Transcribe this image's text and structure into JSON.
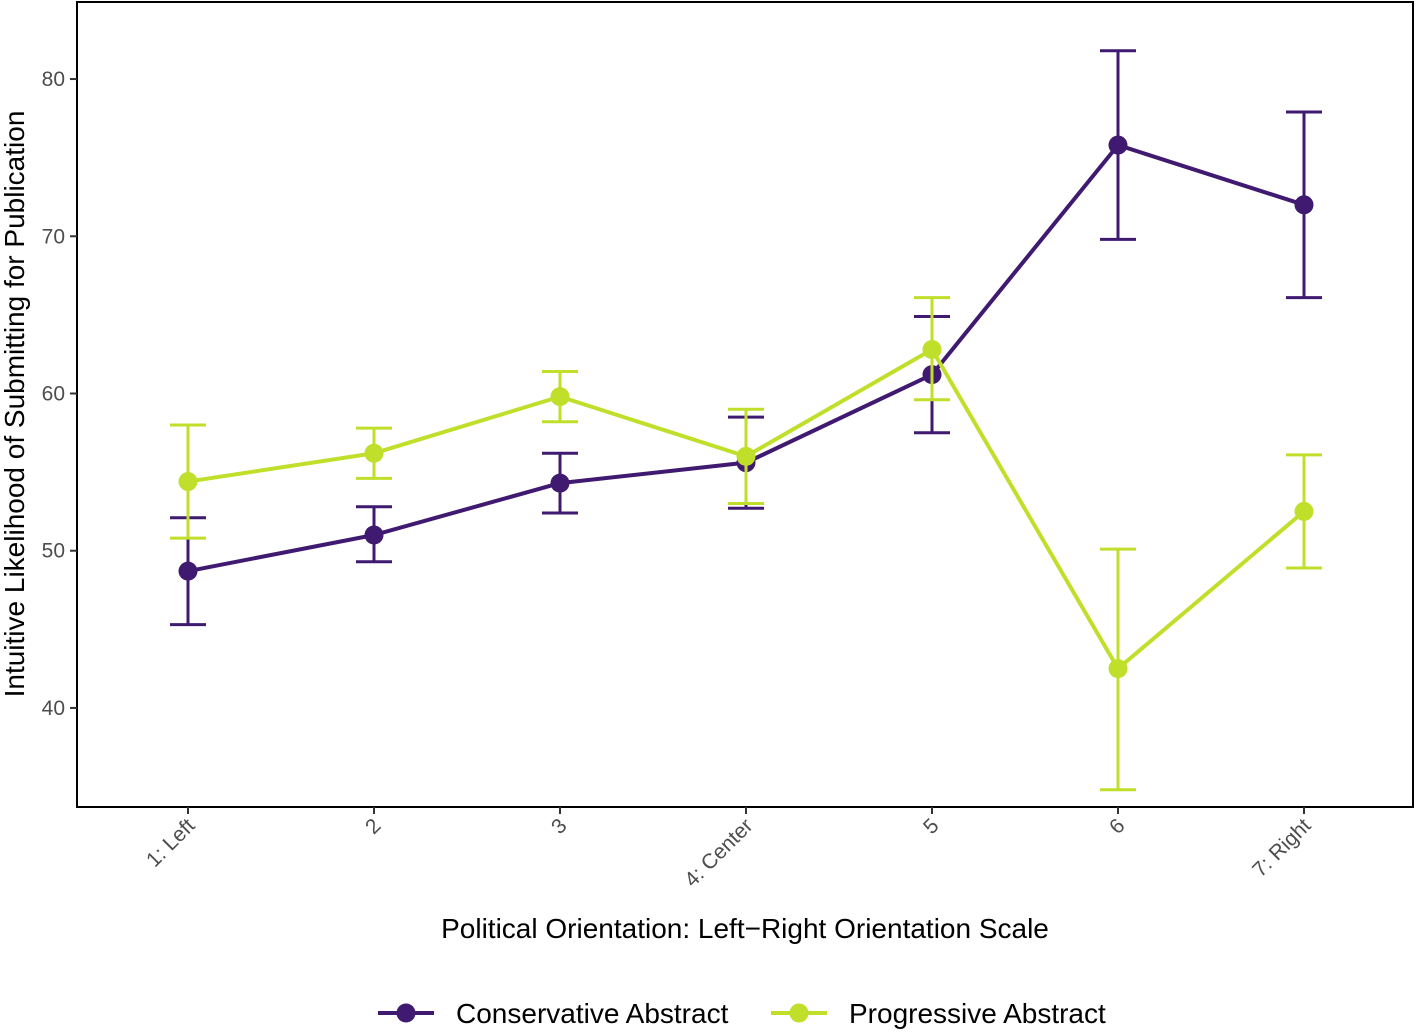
{
  "chart_data": {
    "type": "line",
    "title": "",
    "xlabel": "Political Orientation: Left−Right Orientation Scale",
    "ylabel": "Intuitive Likelihood of Submitting for Publication",
    "categories": [
      "1: Left",
      "2",
      "3",
      "4: Center",
      "5",
      "6",
      "7: Right"
    ],
    "ylim": [
      33.7,
      84.9
    ],
    "yticks": [
      40,
      50,
      60,
      70,
      80
    ],
    "grid": false,
    "legend_position": "bottom",
    "series": [
      {
        "name": "Conservative Abstract",
        "color": "#3f1a70",
        "values": [
          48.7,
          51.0,
          54.3,
          55.6,
          61.2,
          75.8,
          72.0
        ],
        "lower": [
          45.3,
          49.3,
          52.4,
          52.7,
          57.5,
          69.8,
          66.1
        ],
        "upper": [
          52.1,
          52.8,
          56.2,
          58.5,
          64.9,
          81.8,
          77.9
        ]
      },
      {
        "name": "Progressive Abstract",
        "color": "#bfdf2a",
        "values": [
          54.4,
          56.2,
          59.8,
          56.0,
          62.8,
          42.5,
          52.5
        ],
        "lower": [
          50.8,
          54.6,
          58.2,
          53.0,
          59.6,
          34.8,
          48.9
        ],
        "upper": [
          58.0,
          57.8,
          61.4,
          59.0,
          66.1,
          50.1,
          56.1
        ]
      }
    ]
  }
}
